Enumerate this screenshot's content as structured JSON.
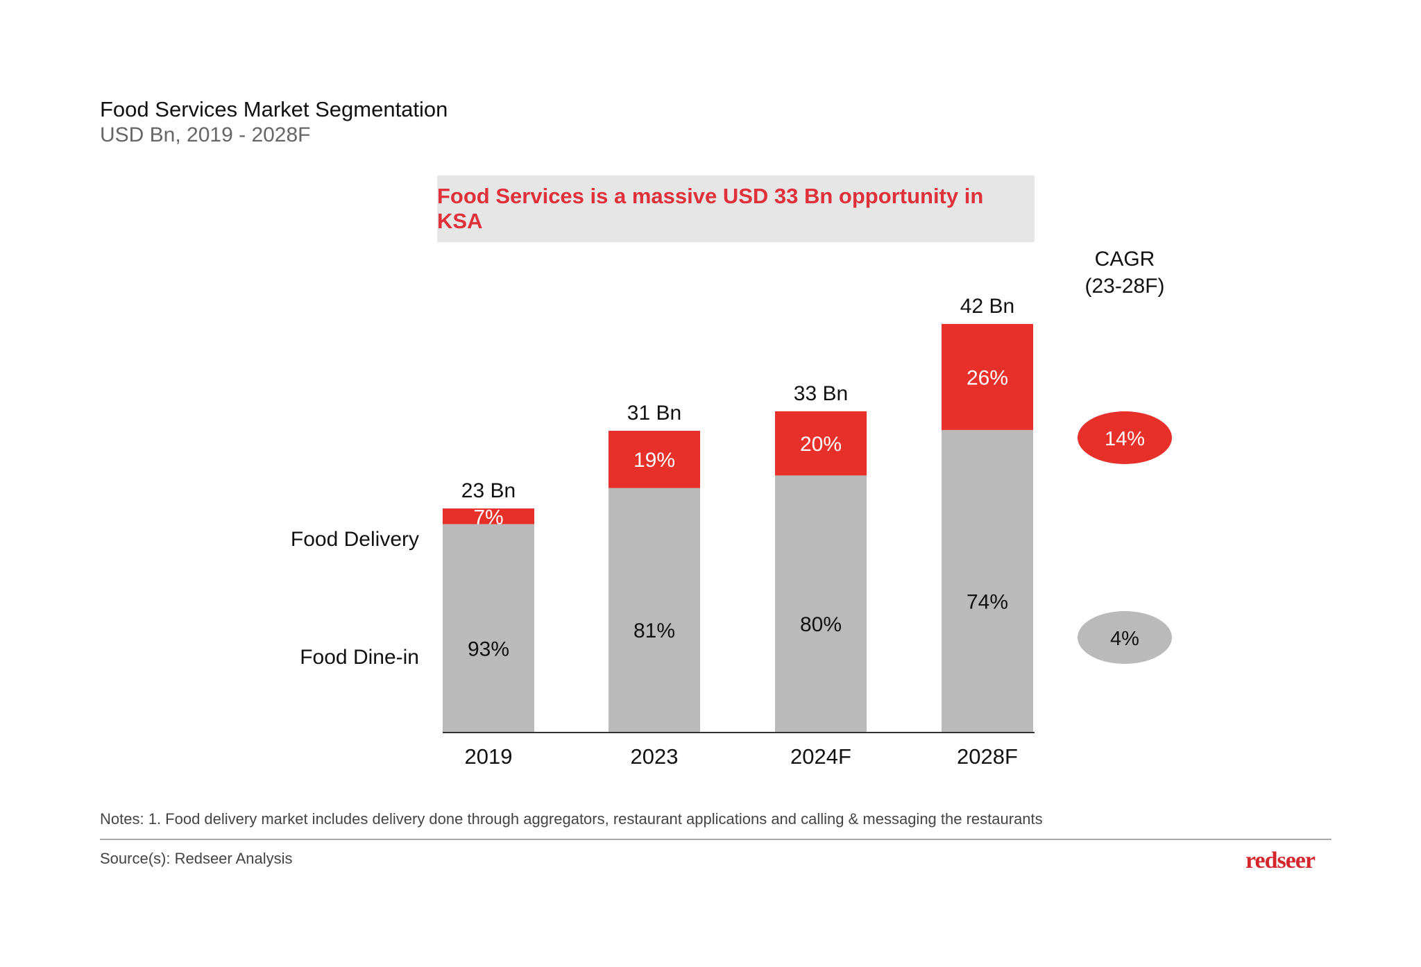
{
  "header": {
    "title": "Food Services Market Segmentation",
    "subtitle": "USD Bn, 2019 - 2028F"
  },
  "callout": "Food Services is a massive USD 33 Bn opportunity in KSA",
  "chart_data": {
    "type": "bar",
    "stacked": true,
    "categories": [
      "2019",
      "2023",
      "2024F",
      "2028F"
    ],
    "totals": [
      23,
      31,
      33,
      42
    ],
    "total_labels": [
      "23 Bn",
      "31 Bn",
      "33 Bn",
      "42 Bn"
    ],
    "series": [
      {
        "name": "Food Dine-in",
        "values_pct": [
          93,
          81,
          80,
          74
        ],
        "labels": [
          "93%",
          "81%",
          "80%",
          "74%"
        ],
        "color": "#bababa"
      },
      {
        "name": "Food Delivery",
        "values_pct": [
          7,
          19,
          20,
          26
        ],
        "labels": [
          "7%",
          "19%",
          "20%",
          "26%"
        ],
        "color": "#e8302a"
      }
    ],
    "ylim": [
      0,
      42
    ],
    "grid": false,
    "legend": "left",
    "cagr": {
      "title_line1": "CAGR",
      "title_line2": "(23-28F)",
      "delivery": "14%",
      "dine_in": "4%"
    }
  },
  "footer": {
    "notes": "Notes: 1. Food delivery market includes delivery done through aggregators, restaurant applications and calling & messaging the restaurants",
    "source": "Source(s): Redseer Analysis",
    "logo": "redseer"
  }
}
